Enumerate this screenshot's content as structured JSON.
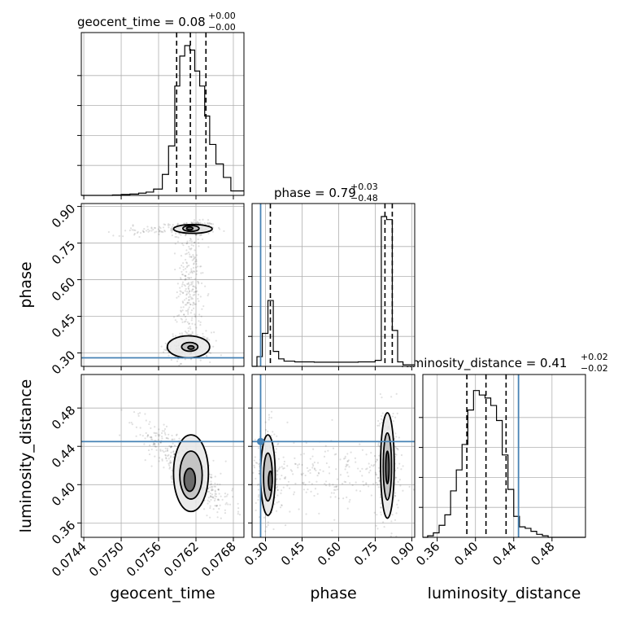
{
  "chart_data": {
    "type": "corner",
    "parameters": [
      "geocent_time",
      "phase",
      "luminosity_distance"
    ],
    "axis_labels": {
      "geocent_time": "geocent_time",
      "phase": "phase",
      "luminosity_distance": "luminosity_distance"
    },
    "ranges": {
      "geocent_time": [
        0.07436,
        0.07697
      ],
      "phase": [
        0.245,
        0.912
      ],
      "luminosity_distance": [
        0.345,
        0.515
      ]
    },
    "ticks": {
      "geocent_time": {
        "values": [
          0.0744,
          0.075,
          0.0756,
          0.0762,
          0.0768
        ],
        "labels": [
          "0.0744",
          "0.0750",
          "0.0756",
          "0.0762",
          "0.0768"
        ]
      },
      "phase": {
        "values": [
          0.3,
          0.45,
          0.6,
          0.75,
          0.9
        ],
        "labels": [
          "0.30",
          "0.45",
          "0.60",
          "0.75",
          "0.90"
        ]
      },
      "luminosity_distance": {
        "values": [
          0.36,
          0.4,
          0.44,
          0.48
        ],
        "labels": [
          "0.36",
          "0.40",
          "0.44",
          "0.48"
        ]
      }
    },
    "titles": {
      "geocent_time": {
        "prefix": "geocent_time = 0.08",
        "sup": "+0.00",
        "sub": "−0.00"
      },
      "phase": {
        "prefix": "phase = 0.79",
        "sup": "+0.03",
        "sub": "−0.48"
      },
      "luminosity_distance": {
        "prefix": "luminosity_distance = 0.41",
        "sup": "+0.02",
        "sub": "−0.02"
      }
    },
    "truths": {
      "phase": 0.28,
      "luminosity_distance": 0.445
    },
    "quantiles": {
      "geocent_time": [
        0.07589,
        0.07611,
        0.07636
      ],
      "phase": [
        0.32,
        0.79,
        0.82
      ],
      "luminosity_distance": [
        0.391,
        0.411,
        0.432
      ]
    },
    "histograms": {
      "geocent_time": {
        "edges": [
          0.07436,
          0.0745,
          0.07462,
          0.07474,
          0.07486,
          0.075,
          0.07514,
          0.07528,
          0.0754,
          0.07552,
          0.07566,
          0.07576,
          0.07586,
          0.07594,
          0.07602,
          0.0761,
          0.07618,
          0.07626,
          0.07634,
          0.07642,
          0.07652,
          0.07664,
          0.07676,
          0.07697
        ],
        "counts": [
          0.0,
          0.0,
          0.0,
          0.0,
          0.003,
          0.006,
          0.009,
          0.015,
          0.022,
          0.042,
          0.14,
          0.33,
          0.73,
          0.93,
          1.0,
          0.97,
          0.83,
          0.73,
          0.53,
          0.34,
          0.21,
          0.12,
          0.03
        ]
      },
      "phase": {
        "edges": [
          0.245,
          0.265,
          0.287,
          0.31,
          0.332,
          0.354,
          0.376,
          0.42,
          0.5,
          0.6,
          0.68,
          0.75,
          0.775,
          0.797,
          0.82,
          0.842,
          0.864,
          0.912
        ],
        "counts": [
          0.0,
          0.065,
          0.22,
          0.44,
          0.1,
          0.05,
          0.035,
          0.03,
          0.028,
          0.028,
          0.03,
          0.04,
          1.0,
          0.98,
          0.24,
          0.03,
          0.01
        ]
      },
      "luminosity_distance": {
        "edges": [
          0.345,
          0.35,
          0.356,
          0.362,
          0.368,
          0.374,
          0.38,
          0.386,
          0.392,
          0.398,
          0.404,
          0.41,
          0.416,
          0.422,
          0.428,
          0.434,
          0.44,
          0.446,
          0.452,
          0.458,
          0.464,
          0.47,
          0.476,
          0.515
        ],
        "counts": [
          0.0,
          0.01,
          0.03,
          0.08,
          0.15,
          0.31,
          0.45,
          0.62,
          0.85,
          0.98,
          0.95,
          0.93,
          0.88,
          0.78,
          0.55,
          0.32,
          0.14,
          0.07,
          0.06,
          0.04,
          0.02,
          0.01,
          0.0
        ]
      }
    },
    "contours_2d": {
      "phase_vs_geocent_time": [
        {
          "level": 1,
          "cx": 0.07615,
          "cy": 0.808,
          "rx": 0.00031,
          "ry": 0.018
        },
        {
          "level": 2,
          "cx": 0.07612,
          "cy": 0.81,
          "rx": 0.00013,
          "ry": 0.012
        },
        {
          "level": 3,
          "cx": 0.0761,
          "cy": 0.81,
          "rx": 5e-05,
          "ry": 0.006
        },
        {
          "level": 1,
          "cx": 0.07608,
          "cy": 0.325,
          "rx": 0.00034,
          "ry": 0.045
        },
        {
          "level": 2,
          "cx": 0.0761,
          "cy": 0.325,
          "rx": 0.00013,
          "ry": 0.018
        },
        {
          "level": 3,
          "cx": 0.07612,
          "cy": 0.322,
          "rx": 5e-05,
          "ry": 0.007
        }
      ],
      "luminosity_distance_vs_geocent_time": [
        {
          "level": 1,
          "cx": 0.07612,
          "cy": 0.412,
          "rx": 0.00028,
          "ry": 0.04
        },
        {
          "level": 2,
          "cx": 0.07612,
          "cy": 0.41,
          "rx": 0.00018,
          "ry": 0.025
        },
        {
          "level": 3,
          "cx": 0.0761,
          "cy": 0.405,
          "rx": 9e-05,
          "ry": 0.012
        }
      ],
      "luminosity_distance_vs_phase": [
        {
          "level": 1,
          "cx": 0.31,
          "cy": 0.41,
          "rx": 0.03,
          "ry": 0.042
        },
        {
          "level": 2,
          "cx": 0.31,
          "cy": 0.408,
          "rx": 0.018,
          "ry": 0.025
        },
        {
          "level": 3,
          "cx": 0.32,
          "cy": 0.404,
          "rx": 0.008,
          "ry": 0.01
        },
        {
          "level": 1,
          "cx": 0.8,
          "cy": 0.42,
          "rx": 0.028,
          "ry": 0.055
        },
        {
          "level": 2,
          "cx": 0.8,
          "cy": 0.419,
          "rx": 0.017,
          "ry": 0.035
        },
        {
          "level": 3,
          "cx": 0.8,
          "cy": 0.418,
          "rx": 0.007,
          "ry": 0.017
        }
      ]
    },
    "colors": {
      "truth": "#4682b4",
      "samples": "#000000",
      "grid": "#b0b0b0"
    },
    "grid": true
  }
}
